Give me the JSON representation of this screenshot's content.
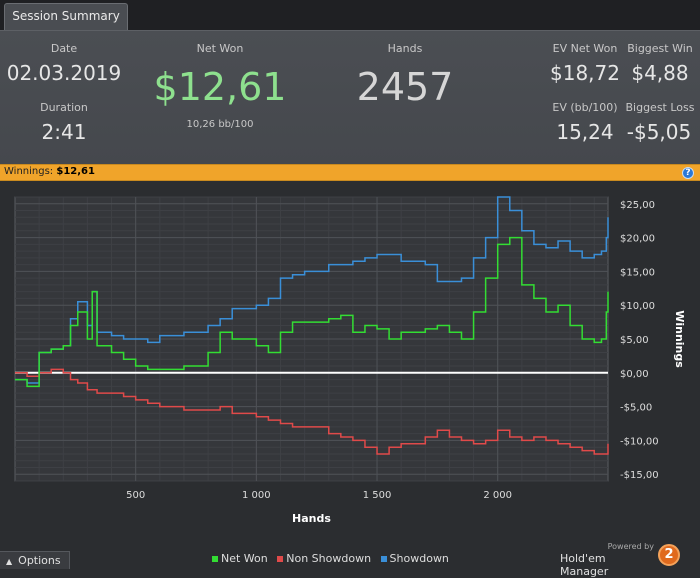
{
  "tabs": [
    {
      "label": "Session Summary"
    }
  ],
  "summary": {
    "date_label": "Date",
    "date_value": "02.03.2019",
    "duration_label": "Duration",
    "duration_value": "2:41",
    "net_won_label": "Net Won",
    "net_won_value": "$12,61",
    "net_won_sub": "10,26 bb/100",
    "hands_label": "Hands",
    "hands_value": "2457",
    "ev_net_won_label": "EV Net Won",
    "ev_net_won_value": "$18,72",
    "biggest_win_label": "Biggest Win",
    "biggest_win_value": "$4,88",
    "ev_bb100_label": "EV (bb/100)",
    "ev_bb100_value": "15,24",
    "biggest_loss_label": "Biggest Loss",
    "biggest_loss_value": "-$5,05"
  },
  "winnings_bar": {
    "label": "Winnings:",
    "value": "$12,61",
    "help_icon": "question-icon"
  },
  "colors": {
    "net_won": "#33dd33",
    "non_showdown": "#e04a4a",
    "showdown": "#3a8fd8",
    "accent": "#f0a42a",
    "big_value_green": "#8ee08e"
  },
  "chart_data": {
    "type": "line",
    "xlabel": "Hands",
    "ylabel": "Winnings",
    "xlim": [
      0,
      2457
    ],
    "ylim": [
      -16,
      26
    ],
    "x_ticks": [
      500,
      1000,
      1500,
      2000
    ],
    "x_tick_labels": [
      "500",
      "1 000",
      "1 500",
      "2 000"
    ],
    "y_ticks": [
      -15,
      -10,
      -5,
      0,
      5,
      10,
      15,
      20,
      25
    ],
    "y_tick_labels": [
      "-$15,00",
      "-$10,00",
      "-$5,00",
      "$0,00",
      "$5,00",
      "$10,00",
      "$15,00",
      "$20,00",
      "$25,00"
    ],
    "grid": true,
    "legend_position": "bottom",
    "x": [
      0,
      50,
      100,
      150,
      200,
      230,
      260,
      300,
      320,
      340,
      400,
      450,
      500,
      550,
      600,
      700,
      800,
      850,
      900,
      1000,
      1050,
      1100,
      1150,
      1200,
      1300,
      1350,
      1400,
      1450,
      1500,
      1550,
      1600,
      1700,
      1750,
      1800,
      1850,
      1900,
      1950,
      2000,
      2050,
      2100,
      2150,
      2200,
      2250,
      2300,
      2350,
      2400,
      2430,
      2450,
      2457
    ],
    "series": [
      {
        "name": "Net Won",
        "values": [
          -1,
          -2,
          3,
          3.5,
          4,
          7,
          9,
          5,
          12,
          4,
          3,
          2,
          1,
          0.5,
          0.5,
          1,
          3,
          6,
          5,
          4,
          3,
          6,
          7.5,
          7.5,
          8,
          8.5,
          6,
          7,
          6.5,
          5,
          6,
          6.5,
          7,
          6,
          5,
          9,
          14,
          19,
          20,
          13,
          11,
          9,
          10,
          7,
          5,
          4.5,
          5,
          9,
          12
        ]
      },
      {
        "name": "Non Showdown",
        "values": [
          0,
          -0.5,
          0,
          0.5,
          0,
          -1,
          -1.5,
          -2.5,
          -2.5,
          -3,
          -3,
          -3.5,
          -4,
          -4.5,
          -5,
          -5.5,
          -5.5,
          -5,
          -6,
          -6.5,
          -7,
          -7.5,
          -8,
          -8,
          -9,
          -9.5,
          -10,
          -11,
          -12,
          -11,
          -10.5,
          -9.5,
          -8.5,
          -9.5,
          -10,
          -10.5,
          -10,
          -8.5,
          -9.5,
          -10,
          -9.5,
          -10,
          -10.5,
          -11,
          -11.5,
          -12,
          -12,
          -12,
          -10.5
        ]
      },
      {
        "name": "Showdown",
        "values": [
          -1,
          -1.5,
          3,
          3.5,
          4,
          8,
          10.5,
          7,
          12,
          6,
          5.5,
          5,
          5,
          4.5,
          5.5,
          6,
          7,
          8,
          9.5,
          10,
          11,
          14,
          14.5,
          15,
          16,
          16,
          16.5,
          17,
          17.5,
          17.5,
          16.5,
          16,
          13.5,
          13.5,
          14,
          17,
          20,
          26,
          24,
          21,
          19,
          18.5,
          19.5,
          18,
          17,
          17.5,
          18,
          20,
          23
        ]
      }
    ]
  },
  "bottom": {
    "options_label": "Options",
    "options_icon": "chevron-up-icon",
    "legend": [
      "Net Won",
      "Non Showdown",
      "Showdown"
    ],
    "powered_by": "Powered by",
    "brand_name": "Hold'em Manager",
    "brand_logo_text": "2"
  }
}
